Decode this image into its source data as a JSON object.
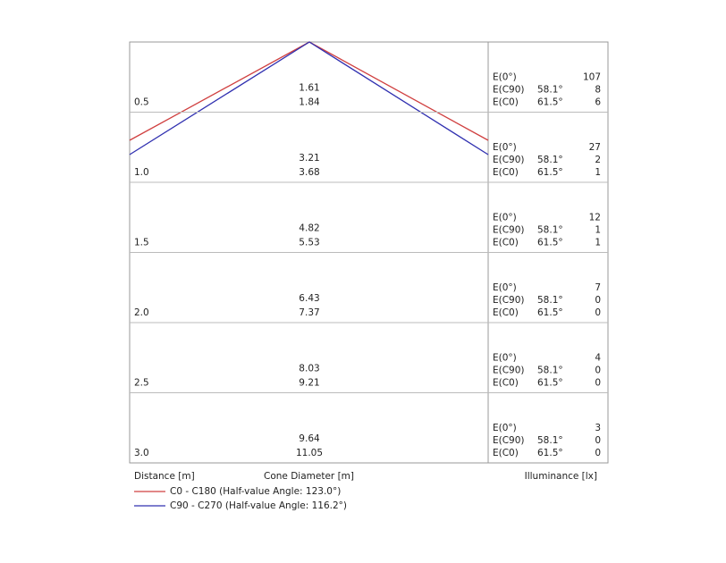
{
  "rows": [
    {
      "distance": "0.5",
      "diameters": [
        "1.61",
        "1.84"
      ],
      "illuminance": [
        {
          "label": "E(0°)",
          "value": "107"
        },
        {
          "label": "E(C90)",
          "angle": "58.1°",
          "value": "8"
        },
        {
          "label": "E(C0)",
          "angle": "61.5°",
          "value": "6"
        }
      ]
    },
    {
      "distance": "1.0",
      "diameters": [
        "3.21",
        "3.68"
      ],
      "illuminance": [
        {
          "label": "E(0°)",
          "value": "27"
        },
        {
          "label": "E(C90)",
          "angle": "58.1°",
          "value": "2"
        },
        {
          "label": "E(C0)",
          "angle": "61.5°",
          "value": "1"
        }
      ]
    },
    {
      "distance": "1.5",
      "diameters": [
        "4.82",
        "5.53"
      ],
      "illuminance": [
        {
          "label": "E(0°)",
          "value": "12"
        },
        {
          "label": "E(C90)",
          "angle": "58.1°",
          "value": "1"
        },
        {
          "label": "E(C0)",
          "angle": "61.5°",
          "value": "1"
        }
      ]
    },
    {
      "distance": "2.0",
      "diameters": [
        "6.43",
        "7.37"
      ],
      "illuminance": [
        {
          "label": "E(0°)",
          "value": "7"
        },
        {
          "label": "E(C90)",
          "angle": "58.1°",
          "value": "0"
        },
        {
          "label": "E(C0)",
          "angle": "61.5°",
          "value": "0"
        }
      ]
    },
    {
      "distance": "2.5",
      "diameters": [
        "8.03",
        "9.21"
      ],
      "illuminance": [
        {
          "label": "E(0°)",
          "value": "4"
        },
        {
          "label": "E(C90)",
          "angle": "58.1°",
          "value": "0"
        },
        {
          "label": "E(C0)",
          "angle": "61.5°",
          "value": "0"
        }
      ]
    },
    {
      "distance": "3.0",
      "diameters": [
        "9.64",
        "11.05"
      ],
      "illuminance": [
        {
          "label": "E(0°)",
          "value": "3"
        },
        {
          "label": "E(C90)",
          "angle": "58.1°",
          "value": "0"
        },
        {
          "label": "E(C0)",
          "angle": "61.5°",
          "value": "0"
        }
      ]
    }
  ],
  "footer": {
    "distance": "Distance [m]",
    "diameter": "Cone Diameter [m]",
    "illuminance": "Illuminance [lx]"
  },
  "legend": [
    "C0 - C180 (Half-value Angle: 123.0°)",
    "C90 - C270 (Half-value Angle: 116.2°)"
  ]
}
